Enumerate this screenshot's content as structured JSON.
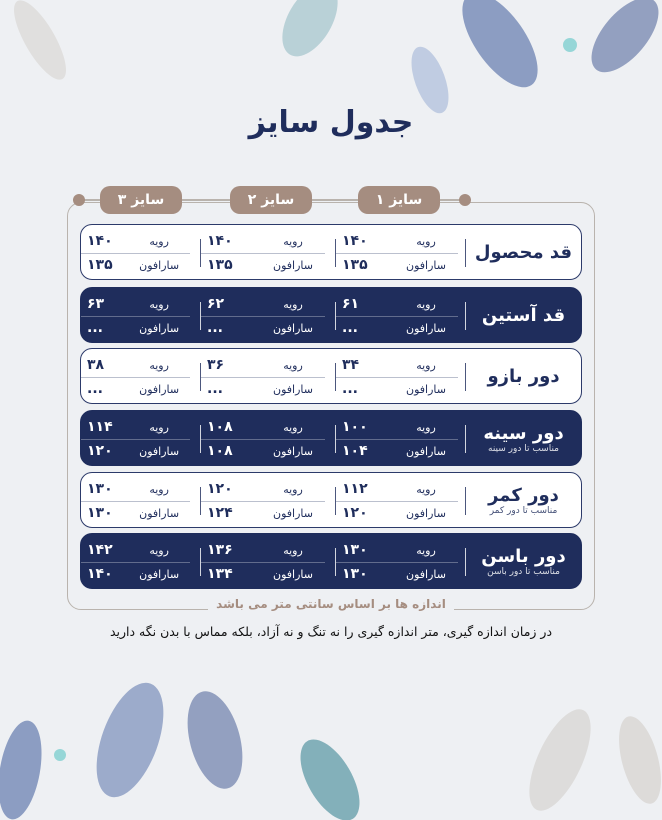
{
  "title": "جدول سایز",
  "sizes": [
    "سایز ۱",
    "سایز ۲",
    "سایز ۳"
  ],
  "labels": {
    "a": "رویه",
    "b": "سارافون"
  },
  "rows": [
    {
      "name": "قد محصول",
      "sub": "",
      "dark": false,
      "vals": [
        [
          "۱۴۰",
          "۱۳۵"
        ],
        [
          "۱۴۰",
          "۱۳۵"
        ],
        [
          "۱۴۰",
          "۱۳۵"
        ]
      ]
    },
    {
      "name": "قد آستین",
      "sub": "",
      "dark": true,
      "vals": [
        [
          "۶۱",
          "..."
        ],
        [
          "۶۲",
          "..."
        ],
        [
          "۶۳",
          "..."
        ]
      ]
    },
    {
      "name": "دور بازو",
      "sub": "",
      "dark": false,
      "vals": [
        [
          "۳۴",
          "..."
        ],
        [
          "۳۶",
          "..."
        ],
        [
          "۳۸",
          "..."
        ]
      ]
    },
    {
      "name": "دور سینه",
      "sub": "مناسب تا دور سینه",
      "dark": true,
      "vals": [
        [
          "۱۰۰",
          "۱۰۴"
        ],
        [
          "۱۰۸",
          "۱۰۸"
        ],
        [
          "۱۱۴",
          "۱۲۰"
        ]
      ]
    },
    {
      "name": "دور کمر",
      "sub": "مناسب تا دور کمر",
      "dark": false,
      "vals": [
        [
          "۱۱۲",
          "۱۲۰"
        ],
        [
          "۱۲۰",
          "۱۲۴"
        ],
        [
          "۱۳۰",
          "۱۳۰"
        ]
      ]
    },
    {
      "name": "دور باسن",
      "sub": "مناسب تا دور باسن",
      "dark": true,
      "vals": [
        [
          "۱۳۰",
          "۱۳۰"
        ],
        [
          "۱۳۶",
          "۱۳۴"
        ],
        [
          "۱۴۲",
          "۱۴۰"
        ]
      ]
    }
  ],
  "note": "اندازه ها بر اساس سانتی متر می باشد",
  "tip": "در زمان اندازه گیری، متر اندازه گیری را نه تنگ و نه آزاد، بلکه مماس با بدن نگه دارید",
  "colors": {
    "navy": "#1f2d5c",
    "tan": "#a58d80",
    "bg": "#eef0f3"
  }
}
